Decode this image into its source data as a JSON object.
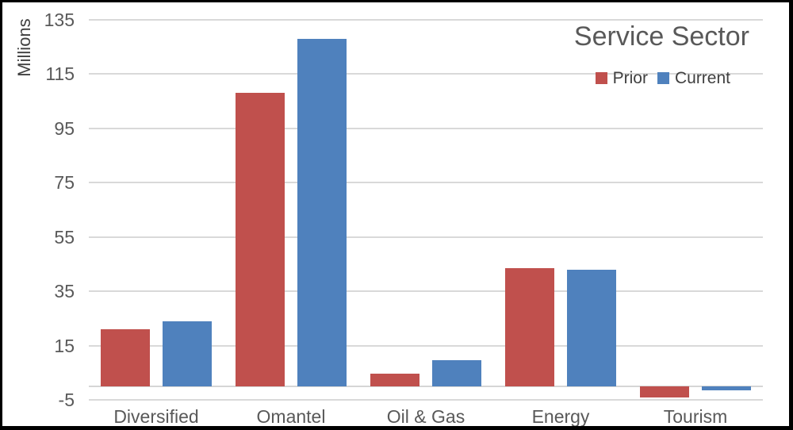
{
  "chart_data": {
    "type": "bar",
    "title": "Service Sector",
    "ylabel": "Millions",
    "xlabel": "",
    "categories": [
      "Diversified",
      "Omantel",
      "Oil & Gas",
      "Energy",
      "Tourism"
    ],
    "series": [
      {
        "name": "Prior",
        "color": "#c0504d",
        "values": [
          21,
          108,
          4.5,
          43.5,
          -4
        ]
      },
      {
        "name": "Current",
        "color": "#4f81bd",
        "values": [
          24,
          128,
          9.5,
          43,
          -1.5
        ]
      }
    ],
    "ylim": [
      -5,
      135
    ],
    "yticks": [
      -5,
      15,
      35,
      55,
      75,
      95,
      115,
      135
    ],
    "grid": true,
    "gridline_color": "#d9d9d9",
    "axis_text_color": "#595959",
    "legend_position": "top-right"
  }
}
